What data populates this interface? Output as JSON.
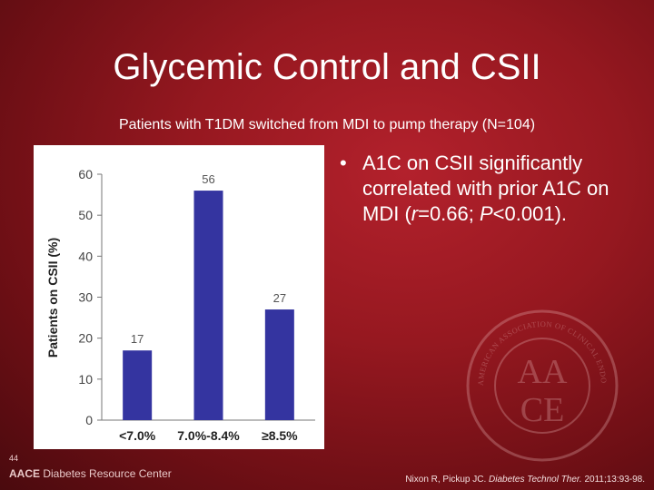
{
  "slide": {
    "title": "Glycemic Control and CSII",
    "subtitle": "Patients with T1DM switched from MDI to pump therapy (N=104)",
    "slide_number": "44",
    "brand": {
      "strong": "AACE",
      "rest": " Diabetes Resource Center"
    },
    "seal_text": {
      "top_arc": "AMERICAN ASSOCIATION OF CLINICAL ENDOCRINOLOGISTS",
      "monogram_top": "AA",
      "monogram_bottom": "CE"
    },
    "citation": {
      "authors": "Nixon R, Pickup JC. ",
      "journal": "Diabetes Technol Ther.",
      "rest": " 2011;13:93-98."
    }
  },
  "bullet": {
    "symbol": "•",
    "text_before_r": "A1C on CSII significantly correlated with prior A1C on MDI (",
    "r_symbol": "r",
    "text_after_r": "=0.66; ",
    "p_symbol": "P",
    "text_after_p": "<0.001)."
  },
  "chart_data": {
    "type": "bar",
    "categories": [
      "<7.0%",
      "7.0%-8.4%",
      "≥8.5%"
    ],
    "values": [
      17,
      56,
      27
    ],
    "data_labels": [
      "17",
      "56",
      "27"
    ],
    "ylabel": "Patients on CSII (%)",
    "xlabel": "",
    "ylim": [
      0,
      60
    ],
    "yticks": [
      0,
      10,
      20,
      30,
      40,
      50,
      60
    ],
    "grid": false,
    "bar_color": "#3434a0"
  }
}
